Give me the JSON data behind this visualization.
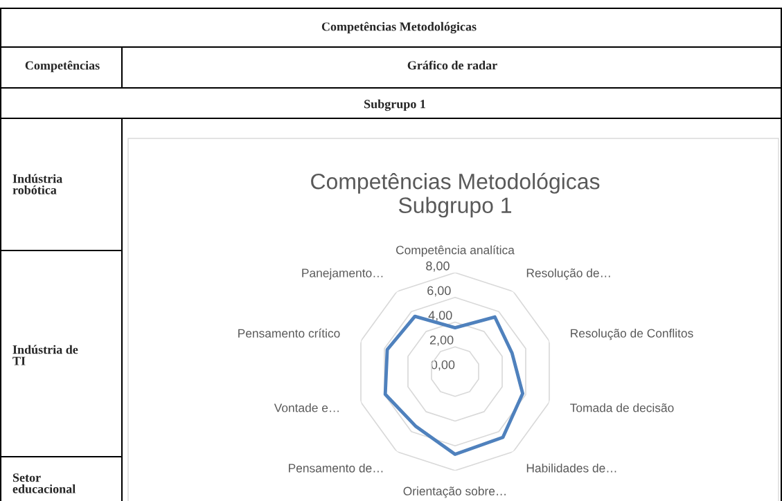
{
  "chart_data": {
    "type": "radar",
    "title": "Competências Metodológicas\nSubgrupo 1",
    "categories": [
      "Competência analítica",
      "Resolução de…",
      "Resolução de Conflitos",
      "Tomada de decisão",
      "Habilidades de…",
      "Orientação sobre…",
      "Pensamento de…",
      "Vontade e…",
      "Pensamento crítico",
      "Panejamento…"
    ],
    "series": [
      {
        "color": "#4f81bd",
        "values": [
          3.55,
          5.46,
          4.84,
          5.74,
          6.57,
          6.69,
          5.44,
          5.93,
          5.76,
          5.52
        ]
      }
    ],
    "ylim": [
      0,
      8
    ],
    "yticks": [
      {
        "value": 0,
        "label": "0,00"
      },
      {
        "value": 2,
        "label": "2,00"
      },
      {
        "value": 4,
        "label": "4,00"
      },
      {
        "value": 6,
        "label": "6,00"
      },
      {
        "value": 8,
        "label": "8,00"
      }
    ],
    "grid": true,
    "legend": false,
    "annotations": [
      "Competências Metodológicas",
      "Competências",
      "Gráfico de radar",
      "Subgrupo 1",
      "Indústria robótica",
      "Indústria de TI",
      "Setor educacional"
    ]
  }
}
